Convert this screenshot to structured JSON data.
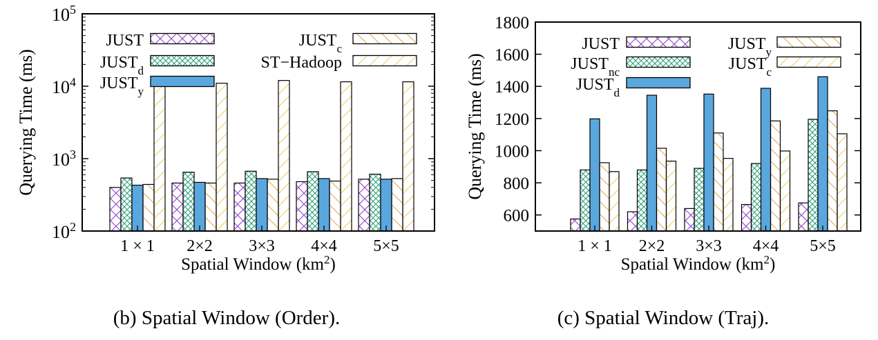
{
  "chart_data": [
    {
      "type": "bar",
      "yscale": "log",
      "ylabel": "Querying Time (ms)",
      "xlabel": "Spatial Window (km",
      "xlabel_sup": "2",
      "xlabel_close": ")",
      "caption": "(b)  Spatial Window (Order).",
      "categories": [
        "1 × 1",
        "2×2",
        "3×3",
        "4×4",
        "5×5"
      ],
      "ylim": [
        100,
        100000
      ],
      "y_ticks": [
        {
          "base": "10",
          "exp": "2",
          "value": 100
        },
        {
          "base": "10",
          "exp": "3",
          "value": 1000
        },
        {
          "base": "10",
          "exp": "4",
          "value": 10000
        },
        {
          "base": "10",
          "exp": "5",
          "value": 100000
        }
      ],
      "grid": false,
      "legend_placement": "top",
      "series": [
        {
          "base": "JUST",
          "sub": "",
          "pattern": "x",
          "color": "#9a4fd6",
          "values": [
            400,
            460,
            460,
            480,
            520
          ]
        },
        {
          "base": "JUST",
          "sub": "d",
          "pattern": "cross",
          "color": "#2f9e7a",
          "values": [
            540,
            650,
            670,
            660,
            610
          ]
        },
        {
          "base": "JUST",
          "sub": "y",
          "pattern": "solid",
          "color": "#5aa7de",
          "values": [
            430,
            470,
            530,
            530,
            520
          ]
        },
        {
          "base": "JUST",
          "sub": "c",
          "pattern": "back",
          "color": "#e8a04a",
          "values": [
            440,
            460,
            520,
            490,
            530
          ]
        },
        {
          "base": "ST−Hadoop",
          "sub": "",
          "pattern": "fwd",
          "color": "#e6cf58",
          "values": [
            11500,
            11000,
            12000,
            11500,
            11500
          ]
        }
      ]
    },
    {
      "type": "bar",
      "yscale": "linear",
      "ylabel": "Querying Time (ms)",
      "xlabel": "Spatial Window (km",
      "xlabel_sup": "2",
      "xlabel_close": ")",
      "caption": "(c)  Spatial Window (Traj).",
      "categories": [
        "1 × 1",
        "2×2",
        "3×3",
        "4×4",
        "5×5"
      ],
      "ylim": [
        500,
        1800
      ],
      "y_ticks": [
        {
          "label": "600",
          "value": 600
        },
        {
          "label": "800",
          "value": 800
        },
        {
          "label": "1000",
          "value": 1000
        },
        {
          "label": "1200",
          "value": 1200
        },
        {
          "label": "1400",
          "value": 1400
        },
        {
          "label": "1600",
          "value": 1600
        },
        {
          "label": "1800",
          "value": 1800
        }
      ],
      "grid": false,
      "legend_placement": "top",
      "series": [
        {
          "base": "JUST",
          "sub": "",
          "pattern": "x",
          "color": "#9a4fd6",
          "values": [
            575,
            620,
            640,
            665,
            675
          ]
        },
        {
          "base": "JUST",
          "sub": "nc",
          "pattern": "cross",
          "color": "#2f9e7a",
          "values": [
            880,
            880,
            890,
            920,
            1195
          ]
        },
        {
          "base": "JUST",
          "sub": "d",
          "pattern": "solid",
          "color": "#5aa7de",
          "values": [
            1198,
            1345,
            1352,
            1388,
            1460
          ]
        },
        {
          "base": "JUST",
          "sub": "y",
          "pattern": "back",
          "color": "#e8a04a",
          "values": [
            925,
            1015,
            1110,
            1185,
            1248
          ]
        },
        {
          "base": "JUST",
          "sub": "c",
          "pattern": "fwd",
          "color": "#e6cf58",
          "values": [
            870,
            935,
            952,
            998,
            1105
          ]
        }
      ]
    }
  ]
}
